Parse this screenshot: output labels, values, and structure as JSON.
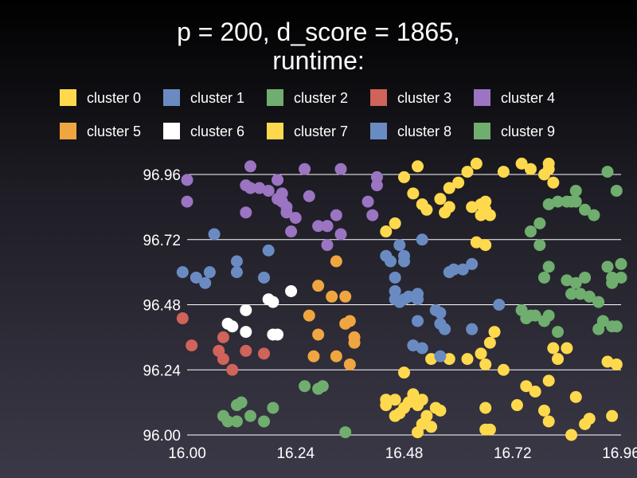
{
  "chart_data": {
    "type": "scatter",
    "title": "p = 200, d_score = 1865,\nruntime:",
    "xlabel": "",
    "ylabel": "",
    "xlim": [
      16.0,
      16.96
    ],
    "ylim": [
      96.0,
      96.96
    ],
    "xticks": [
      "16.00",
      "16.24",
      "16.48",
      "16.72",
      "16.96"
    ],
    "yticks": [
      "96.00",
      "96.24",
      "96.48",
      "96.72",
      "96.96"
    ],
    "grid": "horizontal",
    "legend_placement": "top",
    "series": [
      {
        "name": "cluster 0",
        "color": "#ffd94d",
        "points": [
          [
            16.44,
            96.11
          ],
          [
            16.46,
            96.07
          ],
          [
            16.44,
            96.13
          ],
          [
            16.48,
            96.1
          ],
          [
            16.5,
            96.15
          ],
          [
            16.51,
            96.11
          ],
          [
            16.52,
            96.13
          ],
          [
            16.53,
            96.07
          ],
          [
            16.55,
            96.1
          ],
          [
            16.56,
            96.09
          ],
          [
            16.52,
            96.04
          ],
          [
            16.51,
            96.01
          ],
          [
            16.48,
            96.23
          ],
          [
            16.54,
            96.03
          ],
          [
            16.47,
            96.08
          ],
          [
            16.49,
            96.12
          ],
          [
            16.46,
            96.13
          ]
        ]
      },
      {
        "name": "cluster 1",
        "color": "#6a8bc2",
        "points": [
          [
            16.06,
            96.74
          ],
          [
            16.18,
            96.68
          ],
          [
            16.11,
            96.64
          ],
          [
            16.11,
            96.6
          ],
          [
            16.17,
            96.58
          ],
          [
            15.99,
            96.6
          ],
          [
            16.02,
            96.58
          ],
          [
            16.04,
            96.56
          ],
          [
            16.05,
            96.6
          ]
        ]
      },
      {
        "name": "cluster 2",
        "color": "#6fae6e",
        "points": [
          [
            16.08,
            96.07
          ],
          [
            16.09,
            96.05
          ],
          [
            16.11,
            96.11
          ],
          [
            16.12,
            96.12
          ],
          [
            16.11,
            96.05
          ],
          [
            16.14,
            96.07
          ],
          [
            16.17,
            96.05
          ],
          [
            16.19,
            96.1
          ],
          [
            16.26,
            96.18
          ],
          [
            16.29,
            96.17
          ],
          [
            16.3,
            96.18
          ],
          [
            16.35,
            96.01
          ]
        ]
      },
      {
        "name": "cluster 3",
        "color": "#d0635a",
        "points": [
          [
            15.99,
            96.43
          ],
          [
            16.01,
            96.33
          ],
          [
            16.07,
            96.31
          ],
          [
            16.08,
            96.28
          ],
          [
            16.08,
            96.36
          ],
          [
            16.1,
            96.24
          ],
          [
            16.13,
            96.31
          ],
          [
            16.17,
            96.3
          ]
        ]
      },
      {
        "name": "cluster 4",
        "color": "#9b74c2",
        "points": [
          [
            16.0,
            96.94
          ],
          [
            16.0,
            96.86
          ],
          [
            16.13,
            96.92
          ],
          [
            16.13,
            96.82
          ],
          [
            16.18,
            96.9
          ],
          [
            16.14,
            96.99
          ],
          [
            16.14,
            96.91
          ],
          [
            16.16,
            96.91
          ],
          [
            16.21,
            96.89
          ],
          [
            16.2,
            96.94
          ],
          [
            16.22,
            96.82
          ],
          [
            16.21,
            96.86
          ],
          [
            16.24,
            96.8
          ],
          [
            16.26,
            96.98
          ],
          [
            16.27,
            96.88
          ],
          [
            16.29,
            96.77
          ],
          [
            16.31,
            96.7
          ],
          [
            16.31,
            96.77
          ],
          [
            16.31,
            96.77
          ],
          [
            16.34,
            96.98
          ],
          [
            16.4,
            96.86
          ],
          [
            16.42,
            96.95
          ],
          [
            16.42,
            96.92
          ],
          [
            16.41,
            96.81
          ],
          [
            16.33,
            96.81
          ],
          [
            16.2,
            96.87
          ],
          [
            16.22,
            96.84
          ],
          [
            16.23,
            96.75
          ],
          [
            16.34,
            96.74
          ]
        ]
      },
      {
        "name": "cluster 5",
        "color": "#f0a640",
        "points": [
          [
            16.27,
            96.44
          ],
          [
            16.29,
            96.37
          ],
          [
            16.28,
            96.29
          ],
          [
            16.29,
            96.55
          ],
          [
            16.32,
            96.51
          ],
          [
            16.33,
            96.64
          ],
          [
            16.33,
            96.29
          ],
          [
            16.35,
            96.41
          ],
          [
            16.36,
            96.42
          ],
          [
            16.37,
            96.34
          ],
          [
            16.37,
            96.36
          ],
          [
            16.36,
            96.26
          ],
          [
            16.35,
            96.51
          ]
        ]
      },
      {
        "name": "cluster 6",
        "color": "#ffffff",
        "points": [
          [
            16.09,
            96.41
          ],
          [
            16.1,
            96.4
          ],
          [
            16.13,
            96.38
          ],
          [
            16.13,
            96.46
          ],
          [
            16.18,
            96.5
          ],
          [
            16.19,
            96.49
          ],
          [
            16.19,
            96.37
          ],
          [
            16.2,
            96.37
          ],
          [
            16.23,
            96.53
          ]
        ]
      },
      {
        "name": "cluster 7",
        "color": "#ffd94d",
        "points": [
          [
            16.48,
            96.95
          ],
          [
            16.51,
            96.99
          ],
          [
            16.5,
            96.89
          ],
          [
            16.52,
            96.85
          ],
          [
            16.56,
            96.87
          ],
          [
            16.57,
            96.82
          ],
          [
            16.6,
            96.93
          ],
          [
            16.62,
            96.97
          ],
          [
            16.64,
            97.0
          ],
          [
            16.65,
            96.85
          ],
          [
            16.66,
            96.86
          ],
          [
            16.66,
            96.83
          ],
          [
            16.67,
            96.81
          ],
          [
            16.66,
            96.7
          ],
          [
            16.64,
            96.71
          ],
          [
            16.7,
            96.97
          ],
          [
            16.74,
            97.0
          ],
          [
            16.76,
            96.98
          ],
          [
            16.79,
            96.96
          ],
          [
            16.8,
            96.98
          ],
          [
            16.8,
            97.0
          ],
          [
            16.81,
            96.93
          ],
          [
            16.58,
            96.91
          ],
          [
            16.46,
            96.78
          ],
          [
            16.44,
            96.75
          ],
          [
            16.53,
            96.83
          ],
          [
            16.58,
            96.84
          ],
          [
            16.63,
            96.84
          ],
          [
            16.65,
            96.81
          ],
          [
            16.68,
            96.38
          ],
          [
            16.67,
            96.34
          ],
          [
            16.65,
            96.3
          ],
          [
            16.66,
            96.26
          ],
          [
            16.7,
            96.24
          ],
          [
            16.75,
            96.18
          ],
          [
            16.77,
            96.16
          ],
          [
            16.79,
            96.09
          ],
          [
            16.8,
            96.2
          ],
          [
            16.81,
            96.32
          ],
          [
            16.82,
            96.28
          ],
          [
            16.84,
            96.32
          ],
          [
            16.86,
            96.14
          ],
          [
            16.88,
            96.04
          ],
          [
            16.89,
            96.06
          ],
          [
            16.93,
            96.27
          ],
          [
            16.95,
            96.26
          ],
          [
            16.94,
            96.07
          ],
          [
            16.85,
            96.0
          ],
          [
            16.8,
            96.05
          ],
          [
            16.73,
            96.11
          ],
          [
            16.58,
            96.28
          ],
          [
            16.62,
            96.28
          ],
          [
            16.66,
            96.1
          ],
          [
            16.66,
            96.02
          ],
          [
            16.67,
            96.02
          ],
          [
            16.54,
            96.28
          ]
        ]
      },
      {
        "name": "cluster 8",
        "color": "#6a8bc2",
        "points": [
          [
            16.44,
            96.66
          ],
          [
            16.45,
            96.64
          ],
          [
            16.47,
            96.7
          ],
          [
            16.48,
            96.66
          ],
          [
            16.48,
            96.64
          ],
          [
            16.52,
            96.72
          ],
          [
            16.46,
            96.58
          ],
          [
            16.46,
            96.53
          ],
          [
            16.46,
            96.5
          ],
          [
            16.47,
            96.49
          ],
          [
            16.49,
            96.51
          ],
          [
            16.51,
            96.52
          ],
          [
            16.51,
            96.5
          ],
          [
            16.51,
            96.42
          ],
          [
            16.5,
            96.33
          ],
          [
            16.52,
            96.32
          ],
          [
            16.55,
            96.46
          ],
          [
            16.56,
            96.45
          ],
          [
            16.58,
            96.6
          ],
          [
            16.59,
            96.61
          ],
          [
            16.61,
            96.61
          ],
          [
            16.63,
            96.63
          ],
          [
            16.56,
            96.41
          ],
          [
            16.57,
            96.39
          ],
          [
            16.56,
            96.29
          ],
          [
            16.63,
            96.39
          ],
          [
            16.69,
            96.48
          ],
          [
            16.48,
            96.5
          ]
        ]
      },
      {
        "name": "cluster 9",
        "color": "#6fae6e",
        "points": [
          [
            16.76,
            96.75
          ],
          [
            16.78,
            96.78
          ],
          [
            16.78,
            96.7
          ],
          [
            16.79,
            96.58
          ],
          [
            16.8,
            96.62
          ],
          [
            16.8,
            96.85
          ],
          [
            16.82,
            96.86
          ],
          [
            16.84,
            96.86
          ],
          [
            16.85,
            96.86
          ],
          [
            16.86,
            96.9
          ],
          [
            16.86,
            96.86
          ],
          [
            16.88,
            96.83
          ],
          [
            16.9,
            96.81
          ],
          [
            16.93,
            96.97
          ],
          [
            16.95,
            96.9
          ],
          [
            16.96,
            96.63
          ],
          [
            16.93,
            96.62
          ],
          [
            16.94,
            96.58
          ],
          [
            16.88,
            96.58
          ],
          [
            16.86,
            96.56
          ],
          [
            16.84,
            96.57
          ],
          [
            16.85,
            96.52
          ],
          [
            16.87,
            96.52
          ],
          [
            16.89,
            96.51
          ],
          [
            16.91,
            96.49
          ],
          [
            16.91,
            96.39
          ],
          [
            16.92,
            96.42
          ],
          [
            16.94,
            96.4
          ],
          [
            16.95,
            96.4
          ],
          [
            16.79,
            96.42
          ],
          [
            16.8,
            96.44
          ],
          [
            16.82,
            96.38
          ],
          [
            16.74,
            96.46
          ],
          [
            16.75,
            96.43
          ],
          [
            16.76,
            96.44
          ],
          [
            16.77,
            96.44
          ],
          [
            16.94,
            96.56
          ],
          [
            16.96,
            96.58
          ]
        ]
      }
    ]
  }
}
